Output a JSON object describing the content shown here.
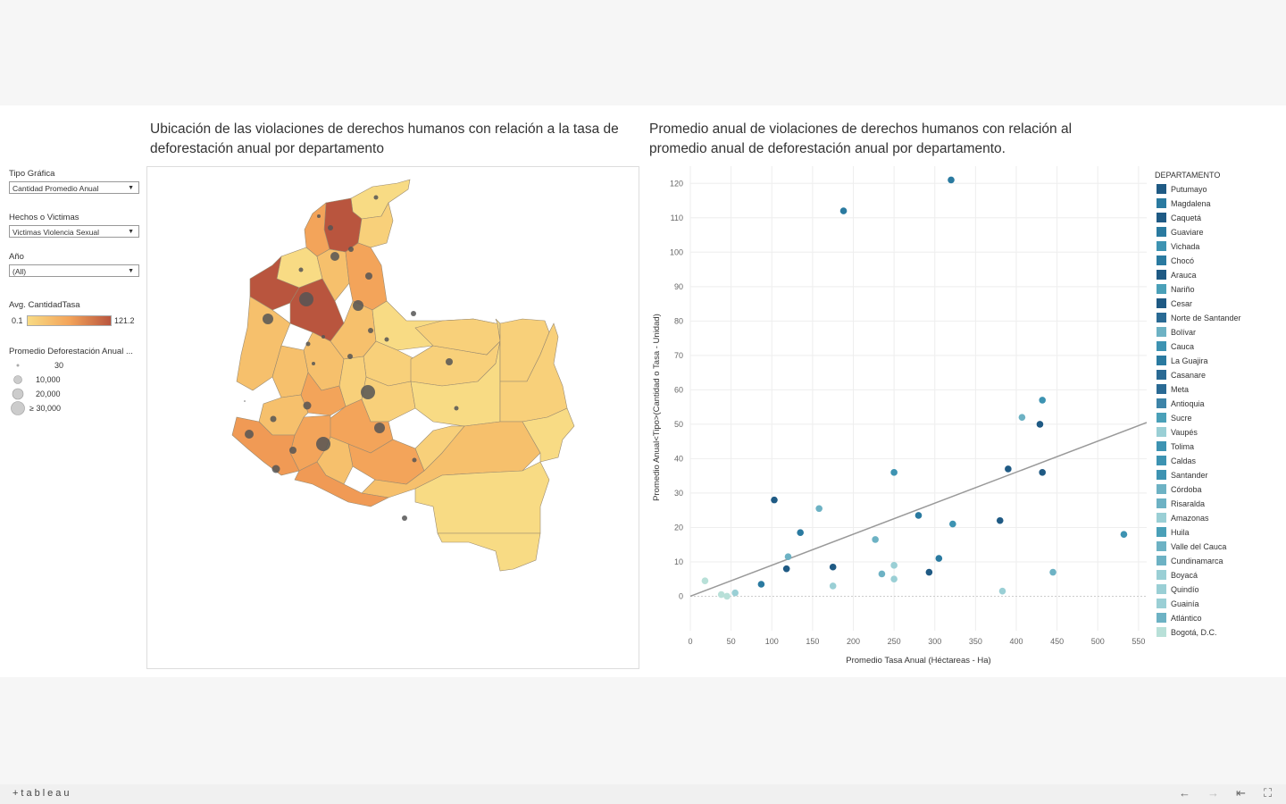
{
  "titles": {
    "map": "Ubicación de las violaciones de derechos humanos con relación a la tasa de deforestación anual por departamento",
    "scatter": "Promedio anual  de violaciones de derechos humanos con relación al promedio anual de deforestación anual por departamento."
  },
  "filters": {
    "tipo": {
      "label": "Tipo Gráfica",
      "value": "Cantidad Promedio Anual"
    },
    "hechos": {
      "label": "Hechos o Victimas",
      "value": "Victimas Violencia Sexual"
    },
    "anio": {
      "label": "Año",
      "value": "(All)"
    }
  },
  "color_legend": {
    "title": "Avg. CantidadTasa",
    "min": "0.1",
    "max": "121.2"
  },
  "size_legend": {
    "title": "Promedio Deforestación Anual ...",
    "items": [
      "30",
      "10,000",
      "20,000",
      "≥ 30,000"
    ]
  },
  "colors": {
    "low": "#f8db84",
    "mid": "#f3a45a",
    "high": "#b9553e",
    "trend": "#999999"
  },
  "chart_data": {
    "type": "scatter",
    "title": "Promedio anual  de violaciones de derechos humanos con relación al promedio anual de deforestación anual por departamento.",
    "xlabel": "Promedio Tasa Anual (Héctareas - Ha)",
    "ylabel": "Promedio Anual<Tipo>(Cantidad o Tasa - Unidad)",
    "xlim": [
      0,
      560
    ],
    "ylim": [
      -10,
      125
    ],
    "xticks": [
      0,
      50,
      100,
      150,
      200,
      250,
      300,
      350,
      400,
      450,
      500,
      550
    ],
    "yticks": [
      0,
      10,
      20,
      30,
      40,
      50,
      60,
      70,
      80,
      90,
      100,
      110,
      120
    ],
    "trendline": [
      [
        0,
        0
      ],
      [
        560,
        50.5
      ]
    ],
    "points": [
      {
        "x": 320,
        "y": 121,
        "c": "#2a7aa0"
      },
      {
        "x": 188,
        "y": 112,
        "c": "#2a7aa0"
      },
      {
        "x": 432,
        "y": 57,
        "c": "#3d93b2"
      },
      {
        "x": 407,
        "y": 52,
        "c": "#6db2c4"
      },
      {
        "x": 429,
        "y": 50,
        "c": "#1f5a84"
      },
      {
        "x": 390,
        "y": 37,
        "c": "#1f5a84"
      },
      {
        "x": 432,
        "y": 36,
        "c": "#1f5a84"
      },
      {
        "x": 250,
        "y": 36,
        "c": "#3d93b2"
      },
      {
        "x": 103,
        "y": 28,
        "c": "#1f5a84"
      },
      {
        "x": 158,
        "y": 25.5,
        "c": "#6db2c4"
      },
      {
        "x": 280,
        "y": 23.5,
        "c": "#2a7aa0"
      },
      {
        "x": 380,
        "y": 22,
        "c": "#1f5a84"
      },
      {
        "x": 322,
        "y": 21,
        "c": "#3d93b2"
      },
      {
        "x": 135,
        "y": 18.5,
        "c": "#2a7aa0"
      },
      {
        "x": 532,
        "y": 18,
        "c": "#3d93b2"
      },
      {
        "x": 227,
        "y": 16.5,
        "c": "#6db2c4"
      },
      {
        "x": 120,
        "y": 11.5,
        "c": "#6db2c4"
      },
      {
        "x": 305,
        "y": 11,
        "c": "#2a7aa0"
      },
      {
        "x": 250,
        "y": 9,
        "c": "#9acfd5"
      },
      {
        "x": 175,
        "y": 8.5,
        "c": "#1f5a84"
      },
      {
        "x": 118,
        "y": 8,
        "c": "#1f5a84"
      },
      {
        "x": 293,
        "y": 7,
        "c": "#1f5a84"
      },
      {
        "x": 235,
        "y": 6.5,
        "c": "#6db2c4"
      },
      {
        "x": 445,
        "y": 7,
        "c": "#6db2c4"
      },
      {
        "x": 250,
        "y": 5,
        "c": "#9acfd5"
      },
      {
        "x": 18,
        "y": 4.5,
        "c": "#b8e0d8"
      },
      {
        "x": 87,
        "y": 3.5,
        "c": "#2a7aa0"
      },
      {
        "x": 175,
        "y": 3,
        "c": "#9acfd5"
      },
      {
        "x": 383,
        "y": 1.5,
        "c": "#9acfd5"
      },
      {
        "x": 55,
        "y": 1,
        "c": "#9acfd5"
      },
      {
        "x": 38,
        "y": 0.5,
        "c": "#b8e0d8"
      },
      {
        "x": 45,
        "y": 0,
        "c": "#b8e0d8"
      }
    ]
  },
  "departamento_legend": {
    "title": "DEPARTAMENTO",
    "items": [
      {
        "name": "Putumayo",
        "color": "#1f5a84"
      },
      {
        "name": "Magdalena",
        "color": "#2a7aa0"
      },
      {
        "name": "Caquetá",
        "color": "#1f5a84"
      },
      {
        "name": "Guaviare",
        "color": "#2a7aa0"
      },
      {
        "name": "Vichada",
        "color": "#3d93b2"
      },
      {
        "name": "Chocó",
        "color": "#2a7aa0"
      },
      {
        "name": "Arauca",
        "color": "#1f5a84"
      },
      {
        "name": "Nariño",
        "color": "#4aa0b8"
      },
      {
        "name": "Cesar",
        "color": "#1f5a84"
      },
      {
        "name": "Norte de Santander",
        "color": "#2a6a94"
      },
      {
        "name": "Bolívar",
        "color": "#6db2c4"
      },
      {
        "name": "Cauca",
        "color": "#3d93b2"
      },
      {
        "name": "La Guajira",
        "color": "#2a7aa0"
      },
      {
        "name": "Casanare",
        "color": "#2a6a94"
      },
      {
        "name": "Meta",
        "color": "#2a6a94"
      },
      {
        "name": "Antioquia",
        "color": "#3d84a8"
      },
      {
        "name": "Sucre",
        "color": "#4aa0b8"
      },
      {
        "name": "Vaupés",
        "color": "#9acfd5"
      },
      {
        "name": "Tolima",
        "color": "#3d93b2"
      },
      {
        "name": "Caldas",
        "color": "#3d93b2"
      },
      {
        "name": "Santander",
        "color": "#3d93b2"
      },
      {
        "name": "Córdoba",
        "color": "#6db2c4"
      },
      {
        "name": "Risaralda",
        "color": "#6db2c4"
      },
      {
        "name": "Amazonas",
        "color": "#9acfd5"
      },
      {
        "name": "Huila",
        "color": "#4aa0b8"
      },
      {
        "name": "Valle del Cauca",
        "color": "#6db2c4"
      },
      {
        "name": "Cundinamarca",
        "color": "#6db2c4"
      },
      {
        "name": "Boyacá",
        "color": "#9acfd5"
      },
      {
        "name": "Quindío",
        "color": "#9acfd5"
      },
      {
        "name": "Guainía",
        "color": "#9acfd5"
      },
      {
        "name": "Atlántico",
        "color": "#6db2c4"
      },
      {
        "name": "Bogotá, D.C.",
        "color": "#b8e0d8"
      }
    ]
  },
  "footer": {
    "logo": "+tableau"
  }
}
